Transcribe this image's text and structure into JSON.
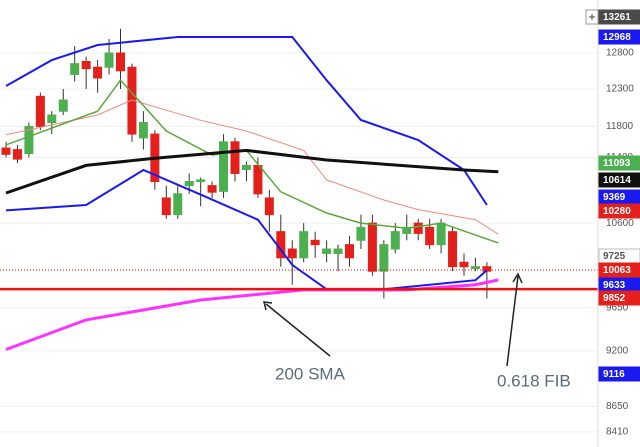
{
  "chart_data": {
    "type": "candlestick",
    "log_scale": true,
    "grid": true,
    "ylim": [
      8270,
      13575
    ],
    "yticks": [
      12800,
      12300,
      11800,
      11400,
      10600,
      9650,
      9200,
      8650,
      8410
    ],
    "up_color": "#4caf50",
    "down_color": "#e3201b",
    "open": [
      11520,
      11500,
      11450,
      12200,
      11850,
      12000,
      12500,
      12680,
      12600,
      12600,
      12800,
      12600,
      11650,
      11700,
      10900,
      10700,
      11050,
      11100,
      11050,
      10980,
      11600,
      11250,
      11300,
      10900,
      10500,
      10300,
      10200,
      10400,
      10250,
      10250,
      10350,
      10400,
      10600,
      10050,
      10300,
      10480,
      10600,
      10550,
      10350,
      10500,
      10150,
      10080,
      10100
    ],
    "high": [
      11600,
      11560,
      11850,
      12250,
      12000,
      12300,
      12900,
      12750,
      12700,
      13000,
      13150,
      12650,
      12000,
      11750,
      11050,
      11050,
      11200,
      11150,
      11100,
      11700,
      11650,
      11350,
      11400,
      11000,
      10700,
      10400,
      10600,
      10500,
      10400,
      10350,
      10450,
      10700,
      10700,
      10400,
      10600,
      10700,
      10650,
      10650,
      10650,
      10550,
      10250,
      10200,
      10150
    ],
    "low": [
      11400,
      11330,
      11400,
      11750,
      11700,
      11950,
      12400,
      12300,
      12250,
      12500,
      12300,
      11600,
      11500,
      11000,
      10650,
      10650,
      10950,
      10800,
      10900,
      10900,
      11100,
      11100,
      10900,
      10500,
      10100,
      9900,
      10150,
      10200,
      10150,
      10050,
      10100,
      10300,
      10000,
      9750,
      10250,
      10400,
      10400,
      10300,
      10250,
      10050,
      10000,
      10050,
      9750
    ],
    "close": [
      11440,
      11380,
      11800,
      11800,
      11950,
      12150,
      12650,
      12580,
      12450,
      12800,
      12550,
      11700,
      11850,
      11100,
      10700,
      10950,
      11100,
      11120,
      10970,
      11600,
      11200,
      11300,
      10950,
      10700,
      10200,
      10200,
      10500,
      10350,
      10300,
      10300,
      10200,
      10550,
      10050,
      10350,
      10500,
      10550,
      10480,
      10350,
      10600,
      10100,
      10100,
      10100,
      10050
    ],
    "lines": [
      {
        "color": "#1a1aee",
        "width": 2,
        "x": [
          0,
          4,
          8,
          15,
          25,
          28,
          31,
          36,
          40,
          42
        ],
        "values": [
          12340,
          12700,
          12915,
          13030,
          13030,
          12420,
          11884,
          11623,
          11243,
          10815
        ]
      },
      {
        "color": "#1a1aee",
        "width": 2,
        "x": [
          0,
          7,
          12,
          17,
          22,
          25,
          28,
          33,
          37,
          41,
          42
        ],
        "values": [
          10750,
          10815,
          11243,
          10940,
          10640,
          10120,
          9850,
          9850,
          9900,
          9950,
          10060
        ]
      },
      {
        "color": "#f08a80",
        "width": 1,
        "x": [
          0,
          8,
          11,
          17,
          21,
          26,
          28,
          33,
          36,
          41,
          43
        ],
        "values": [
          11690,
          11950,
          12150,
          11880,
          11740,
          11490,
          11120,
          10875,
          10760,
          10640,
          10470
        ]
      },
      {
        "color": "#5aa83c",
        "width": 1.5,
        "x": [
          0,
          8,
          10,
          14,
          18,
          21,
          24,
          28,
          31,
          35,
          38,
          43
        ],
        "values": [
          11560,
          12000,
          12420,
          11740,
          11430,
          11490,
          10975,
          10720,
          10600,
          10540,
          10600,
          10370
        ]
      },
      {
        "color": "#111111",
        "width": 3,
        "x": [
          0,
          7,
          13,
          21,
          28,
          40,
          43
        ],
        "values": [
          10960,
          11300,
          11390,
          11490,
          11368,
          11243,
          11220
        ]
      },
      {
        "color": "#ff33ff",
        "width": 3,
        "x": [
          0,
          7,
          17,
          26,
          35,
          41,
          43
        ],
        "values": [
          9214,
          9521,
          9734,
          9843,
          9843,
          9900,
          9952
        ]
      }
    ],
    "hlines": [
      {
        "value": 9852,
        "color": "#ee1111",
        "width": 2.5,
        "dashed": false
      },
      {
        "value": 10063,
        "color": "#ee1111",
        "width": 1,
        "dashed": true
      }
    ],
    "price_tags": [
      {
        "value": 13261,
        "color": "#4a4a4a"
      },
      {
        "value": 12968,
        "color": "#1a1aee"
      },
      {
        "value": 11093,
        "color": "#4caf50"
      },
      {
        "value": 10614,
        "color": "#111111"
      },
      {
        "value": 9369,
        "color": "#1a1aee"
      },
      {
        "value": 10280,
        "color": "#e3201b"
      },
      {
        "value": 9725,
        "color": "#ffffff"
      },
      {
        "value": 10063,
        "color": "#e3201b"
      },
      {
        "value": 9633,
        "color": "#1a1aee"
      },
      {
        "value": 9852,
        "color": "#e3201b"
      },
      {
        "value": 9116,
        "color": "#1a1aee"
      }
    ],
    "annotations": [
      "200 SMA",
      "0.618 FIB"
    ]
  }
}
